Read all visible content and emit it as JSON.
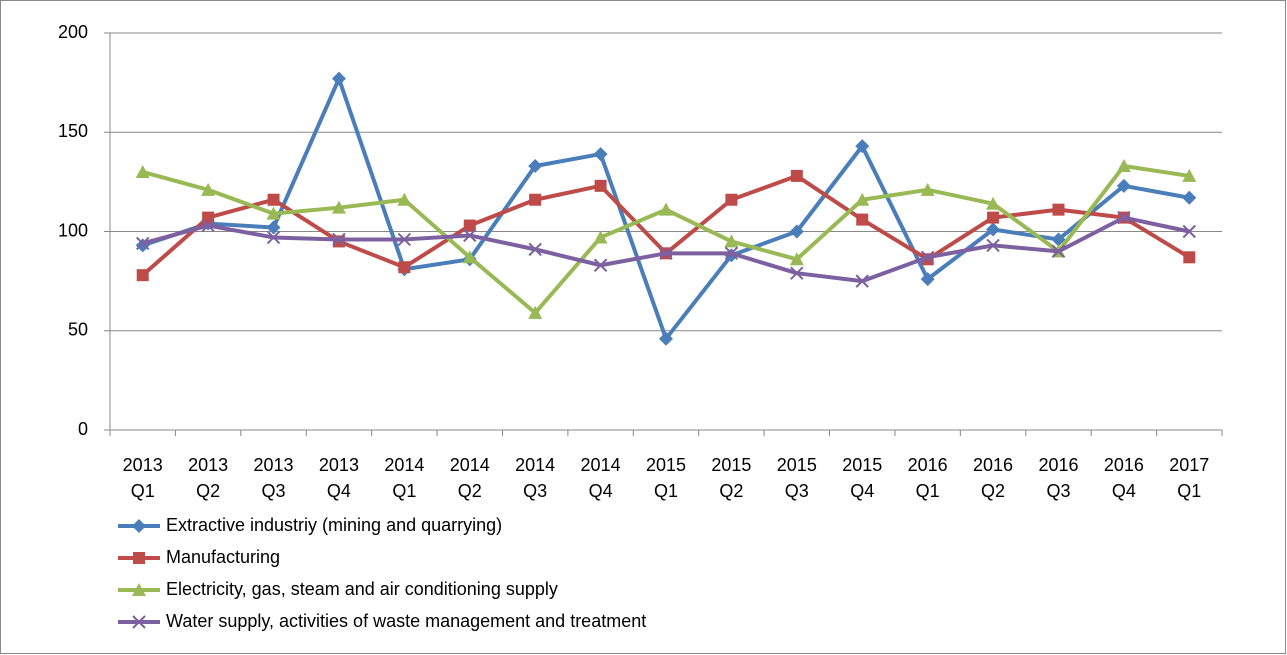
{
  "chart_data": {
    "type": "line",
    "categories": [
      "2013 Q1",
      "2013 Q2",
      "2013 Q3",
      "2013 Q4",
      "2014 Q1",
      "2014 Q2",
      "2014 Q3",
      "2014 Q4",
      "2015 Q1",
      "2015 Q2",
      "2015 Q3",
      "2015 Q4",
      "2016 Q1",
      "2016 Q2",
      "2016 Q3",
      "2016 Q4",
      "2017 Q1"
    ],
    "series": [
      {
        "name": "Extractive industriy (mining and quarrying)",
        "color": "#4a7ebb",
        "marker": "diamond",
        "values": [
          93,
          104,
          102,
          177,
          81,
          86,
          133,
          139,
          46,
          88,
          100,
          143,
          76,
          101,
          96,
          123,
          117
        ]
      },
      {
        "name": "Manufacturing",
        "color": "#be4b48",
        "marker": "square",
        "values": [
          78,
          107,
          116,
          95,
          82,
          103,
          116,
          123,
          89,
          116,
          128,
          106,
          86,
          107,
          111,
          107,
          87
        ]
      },
      {
        "name": "Electricity, gas, steam and air conditioning supply",
        "color": "#98b954",
        "marker": "triangle",
        "values": [
          130,
          121,
          109,
          112,
          116,
          87,
          59,
          97,
          111,
          95,
          86,
          116,
          121,
          114,
          90,
          133,
          128
        ]
      },
      {
        "name": "Water supply, activities of waste management and treatment",
        "color": "#7d60a0",
        "marker": "x",
        "values": [
          94,
          103,
          97,
          96,
          96,
          98,
          91,
          83,
          89,
          89,
          79,
          75,
          87,
          93,
          90,
          107,
          100
        ]
      }
    ],
    "ylim": [
      0,
      200
    ],
    "yticks": [
      0,
      50,
      100,
      150,
      200
    ],
    "grid": true,
    "legend": "bottom-left"
  }
}
